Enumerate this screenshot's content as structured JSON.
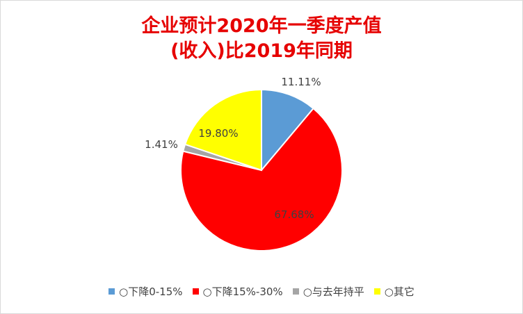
{
  "chart_data": {
    "type": "pie",
    "title": [
      "企业预计2020年一季度产值",
      "(收入)比2019年同期"
    ],
    "slices": [
      {
        "label": "○下降0-15%",
        "value": 11.11,
        "value_label": "11.11%",
        "color": "#5b9bd5"
      },
      {
        "label": "○下降15%-30%",
        "value": 67.68,
        "value_label": "67.68%",
        "color": "#ff0000"
      },
      {
        "label": "○与去年持平",
        "value": 1.41,
        "value_label": "1.41%",
        "color": "#a5a5a5"
      },
      {
        "label": "○其它",
        "value": 19.8,
        "value_label": "19.80%",
        "color": "#ffff00"
      }
    ],
    "legend_position": "bottom",
    "start_angle": "12 o'clock, clockwise"
  }
}
